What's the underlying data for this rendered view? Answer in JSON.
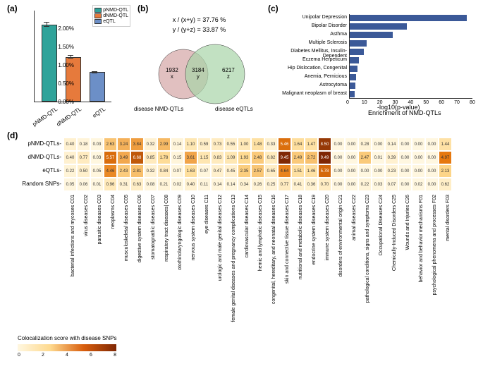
{
  "panel_a": {
    "label": "(a)",
    "type": "bar",
    "categories": [
      "pNMD-QTL",
      "dNMD-QTL",
      "eQTL"
    ],
    "values": [
      2.1,
      1.22,
      0.8
    ],
    "errors": [
      0.07,
      0.05,
      0.03
    ],
    "colors": [
      "#2fa39a",
      "#e67a3c",
      "#6c8fc7"
    ],
    "ylim": [
      0,
      2.5
    ],
    "yticks": [
      "0.00%",
      "0.50%",
      "1.00%",
      "1.50%",
      "2.00%"
    ],
    "ytick_vals": [
      0,
      0.5,
      1.0,
      1.5,
      2.0
    ],
    "legend": [
      {
        "color": "#2fa39a",
        "label": "pNMD-QTL"
      },
      {
        "color": "#e67a3c",
        "label": "dNMD-QTL"
      },
      {
        "color": "#6c8fc7",
        "label": "eQTL"
      }
    ]
  },
  "panel_b": {
    "label": "(b)",
    "formula1": "x / (x+y) = 37.76 %",
    "formula2": "y / (y+z) = 33.87 %",
    "left_circle_color": "#d4a5a5",
    "right_circle_color": "#a8d4a8",
    "x_val": "1932",
    "x_label": "x",
    "y_val": "3184",
    "y_label": "y",
    "z_val": "6217",
    "z_label": "z",
    "left_label": "disease NMD-QTLs",
    "right_label": "disease eQTLs"
  },
  "panel_c": {
    "label": "(c)",
    "title": "Enrichment of NMD-QTLs",
    "xlabel": "-log10(p-value)",
    "items": [
      {
        "label": "Unipolar Depression",
        "value": 76
      },
      {
        "label": "Bipolar Disorder",
        "value": 37
      },
      {
        "label": "Asthma",
        "value": 28
      },
      {
        "label": "Multiple Sclerosis",
        "value": 11
      },
      {
        "label": "Diabetes Mellitus, Insulin-Dependent",
        "value": 9
      },
      {
        "label": "Eczema Herpeticum",
        "value": 6
      },
      {
        "label": "Hip Dislocation, Congenital",
        "value": 5
      },
      {
        "label": "Anemia, Pernicious",
        "value": 4
      },
      {
        "label": "Astrocytoma",
        "value": 3.5
      },
      {
        "label": "Malignant neoplasm of breast",
        "value": 3
      }
    ],
    "xlim": 80,
    "xticks": [
      0,
      10,
      20,
      30,
      40,
      50,
      60,
      70,
      80
    ],
    "bar_color": "#3b5998"
  },
  "panel_d": {
    "label": "(d)",
    "rows": [
      "pNMD-QTLs",
      "dNMD-QTLs",
      "eQTLs",
      "Random SNPs"
    ],
    "cols": [
      "bacterial infections and mycoses C01",
      "virus diseases C02",
      "parasitic diseases C03",
      "neoplasms C04",
      "musculoskeletal diseases C05",
      "digestive system diseases C06",
      "stomatognathic diseases C07",
      "respiratory tract diseases| C08",
      "otorhinolaryngologic diseases C09",
      "nervous system diseases C10",
      "eye diseases C11",
      "urologic and male genital diseases C12",
      "female genital diseases and pregnancy complications C13",
      "cardiovascular diseases C14",
      "hemic and lymphatic diseases C15",
      "congenital, hereditary, and neonatal diseases C16",
      "skin and connective tissue diseases C17",
      "nutritional and metabolic diseases C18",
      "endocrine system diseases C19",
      "immune system diseases C20",
      "disorders of environmental origin C21",
      "animal diseases C22",
      "pathological conditions, signs and symptoms C23",
      "Occupational Diseases C24",
      "Chemically-Induced Disorders C25",
      "Wounds and Injuries C26",
      "behavior and behavior mechanisms F01",
      "psychological phenomena and processes F02",
      "mental disorders F03"
    ],
    "values": [
      [
        0.4,
        0.18,
        0.03,
        2.63,
        3.24,
        3.84,
        0.32,
        2.99,
        0.14,
        1.1,
        0.59,
        0.73,
        0.55,
        1.0,
        1.48,
        0.33,
        5.46,
        1.64,
        1.47,
        8.5,
        0.0,
        0.0,
        0.28,
        0.0,
        0.14,
        0.0,
        0.0,
        0.0,
        1.44
      ],
      [
        0.4,
        0.77,
        0.03,
        5.57,
        3.49,
        6.68,
        0.85,
        1.78,
        0.15,
        3.61,
        1.15,
        0.83,
        1.09,
        1.93,
        2.48,
        0.82,
        9.45,
        2.49,
        2.72,
        9.49,
        0.0,
        0.0,
        2.47,
        0.01,
        0.39,
        0.0,
        0.0,
        0.0,
        4.97
      ],
      [
        0.22,
        0.5,
        0.05,
        4.46,
        2.43,
        2.81,
        0.32,
        0.84,
        0.07,
        1.63,
        0.07,
        0.47,
        0.45,
        2.35,
        2.57,
        0.65,
        4.64,
        1.51,
        1.46,
        5.78,
        0.0,
        0.0,
        0.0,
        0.0,
        0.23,
        0.0,
        0.0,
        0.0,
        2.13
      ],
      [
        0.05,
        0.06,
        0.01,
        0.96,
        0.31,
        0.63,
        0.08,
        0.21,
        0.02,
        0.4,
        0.11,
        0.14,
        0.14,
        0.34,
        0.26,
        0.25,
        0.77,
        0.41,
        0.36,
        0.7,
        0.0,
        0.0,
        0.22,
        0.03,
        0.07,
        0.0,
        0.02,
        0.0,
        0.62
      ]
    ],
    "colorbar_title": "Colocalization score with disease SNPs",
    "colorbar_ticks": [
      "0",
      "2",
      "4",
      "6",
      "8"
    ],
    "color_stops": [
      {
        "v": 0,
        "c": "#fff7e0"
      },
      {
        "v": 2,
        "c": "#fed98e"
      },
      {
        "v": 5,
        "c": "#e6770e"
      },
      {
        "v": 9.5,
        "c": "#7f2704"
      }
    ]
  }
}
